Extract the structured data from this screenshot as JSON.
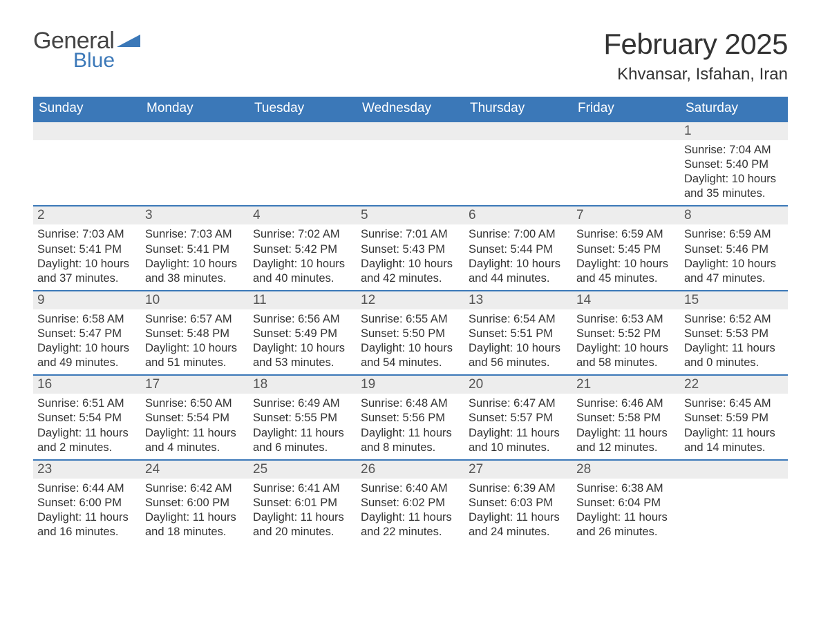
{
  "logo": {
    "word1": "General",
    "word2": "Blue"
  },
  "title": "February 2025",
  "location": "Khvansar, Isfahan, Iran",
  "colors": {
    "header_bg": "#3b78b8",
    "header_text": "#ffffff",
    "daynum_bg": "#ededed",
    "daynum_text": "#555555",
    "body_text": "#333333",
    "logo_gray": "#444444",
    "logo_blue": "#3b78b8",
    "page_bg": "#ffffff"
  },
  "days_of_week": [
    "Sunday",
    "Monday",
    "Tuesday",
    "Wednesday",
    "Thursday",
    "Friday",
    "Saturday"
  ],
  "weeks": [
    [
      null,
      null,
      null,
      null,
      null,
      null,
      {
        "n": "1",
        "sunrise": "7:04 AM",
        "sunset": "5:40 PM",
        "daylight": "10 hours and 35 minutes."
      }
    ],
    [
      {
        "n": "2",
        "sunrise": "7:03 AM",
        "sunset": "5:41 PM",
        "daylight": "10 hours and 37 minutes."
      },
      {
        "n": "3",
        "sunrise": "7:03 AM",
        "sunset": "5:41 PM",
        "daylight": "10 hours and 38 minutes."
      },
      {
        "n": "4",
        "sunrise": "7:02 AM",
        "sunset": "5:42 PM",
        "daylight": "10 hours and 40 minutes."
      },
      {
        "n": "5",
        "sunrise": "7:01 AM",
        "sunset": "5:43 PM",
        "daylight": "10 hours and 42 minutes."
      },
      {
        "n": "6",
        "sunrise": "7:00 AM",
        "sunset": "5:44 PM",
        "daylight": "10 hours and 44 minutes."
      },
      {
        "n": "7",
        "sunrise": "6:59 AM",
        "sunset": "5:45 PM",
        "daylight": "10 hours and 45 minutes."
      },
      {
        "n": "8",
        "sunrise": "6:59 AM",
        "sunset": "5:46 PM",
        "daylight": "10 hours and 47 minutes."
      }
    ],
    [
      {
        "n": "9",
        "sunrise": "6:58 AM",
        "sunset": "5:47 PM",
        "daylight": "10 hours and 49 minutes."
      },
      {
        "n": "10",
        "sunrise": "6:57 AM",
        "sunset": "5:48 PM",
        "daylight": "10 hours and 51 minutes."
      },
      {
        "n": "11",
        "sunrise": "6:56 AM",
        "sunset": "5:49 PM",
        "daylight": "10 hours and 53 minutes."
      },
      {
        "n": "12",
        "sunrise": "6:55 AM",
        "sunset": "5:50 PM",
        "daylight": "10 hours and 54 minutes."
      },
      {
        "n": "13",
        "sunrise": "6:54 AM",
        "sunset": "5:51 PM",
        "daylight": "10 hours and 56 minutes."
      },
      {
        "n": "14",
        "sunrise": "6:53 AM",
        "sunset": "5:52 PM",
        "daylight": "10 hours and 58 minutes."
      },
      {
        "n": "15",
        "sunrise": "6:52 AM",
        "sunset": "5:53 PM",
        "daylight": "11 hours and 0 minutes."
      }
    ],
    [
      {
        "n": "16",
        "sunrise": "6:51 AM",
        "sunset": "5:54 PM",
        "daylight": "11 hours and 2 minutes."
      },
      {
        "n": "17",
        "sunrise": "6:50 AM",
        "sunset": "5:54 PM",
        "daylight": "11 hours and 4 minutes."
      },
      {
        "n": "18",
        "sunrise": "6:49 AM",
        "sunset": "5:55 PM",
        "daylight": "11 hours and 6 minutes."
      },
      {
        "n": "19",
        "sunrise": "6:48 AM",
        "sunset": "5:56 PM",
        "daylight": "11 hours and 8 minutes."
      },
      {
        "n": "20",
        "sunrise": "6:47 AM",
        "sunset": "5:57 PM",
        "daylight": "11 hours and 10 minutes."
      },
      {
        "n": "21",
        "sunrise": "6:46 AM",
        "sunset": "5:58 PM",
        "daylight": "11 hours and 12 minutes."
      },
      {
        "n": "22",
        "sunrise": "6:45 AM",
        "sunset": "5:59 PM",
        "daylight": "11 hours and 14 minutes."
      }
    ],
    [
      {
        "n": "23",
        "sunrise": "6:44 AM",
        "sunset": "6:00 PM",
        "daylight": "11 hours and 16 minutes."
      },
      {
        "n": "24",
        "sunrise": "6:42 AM",
        "sunset": "6:00 PM",
        "daylight": "11 hours and 18 minutes."
      },
      {
        "n": "25",
        "sunrise": "6:41 AM",
        "sunset": "6:01 PM",
        "daylight": "11 hours and 20 minutes."
      },
      {
        "n": "26",
        "sunrise": "6:40 AM",
        "sunset": "6:02 PM",
        "daylight": "11 hours and 22 minutes."
      },
      {
        "n": "27",
        "sunrise": "6:39 AM",
        "sunset": "6:03 PM",
        "daylight": "11 hours and 24 minutes."
      },
      {
        "n": "28",
        "sunrise": "6:38 AM",
        "sunset": "6:04 PM",
        "daylight": "11 hours and 26 minutes."
      },
      null
    ]
  ],
  "labels": {
    "sunrise": "Sunrise: ",
    "sunset": "Sunset: ",
    "daylight": "Daylight: "
  }
}
